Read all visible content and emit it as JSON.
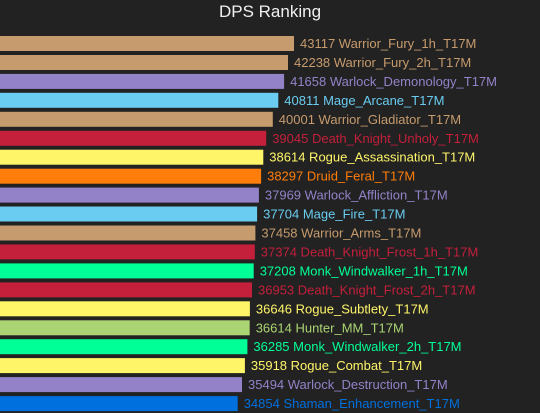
{
  "chart_data": {
    "type": "bar",
    "orientation": "horizontal",
    "title": "DPS Ranking",
    "xlim": [
      0,
      43117
    ],
    "grid": false,
    "legend": "none",
    "bars": [
      {
        "name": "Warrior_Fury_1h_T17M",
        "value": 43117,
        "color": "#c69b6d"
      },
      {
        "name": "Warrior_Fury_2h_T17M",
        "value": 42238,
        "color": "#c69b6d"
      },
      {
        "name": "Warlock_Demonology_T17M",
        "value": 41658,
        "color": "#9482c9"
      },
      {
        "name": "Mage_Arcane_T17M",
        "value": 40811,
        "color": "#69ccf0"
      },
      {
        "name": "Warrior_Gladiator_T17M",
        "value": 40001,
        "color": "#c69b6d"
      },
      {
        "name": "Death_Knight_Unholy_T17M",
        "value": 39045,
        "color": "#c41f3b"
      },
      {
        "name": "Rogue_Assassination_T17M",
        "value": 38614,
        "color": "#fff569"
      },
      {
        "name": "Druid_Feral_T17M",
        "value": 38297,
        "color": "#ff7d0a"
      },
      {
        "name": "Warlock_Affliction_T17M",
        "value": 37969,
        "color": "#9482c9"
      },
      {
        "name": "Mage_Fire_T17M",
        "value": 37704,
        "color": "#69ccf0"
      },
      {
        "name": "Warrior_Arms_T17M",
        "value": 37458,
        "color": "#c69b6d"
      },
      {
        "name": "Death_Knight_Frost_1h_T17M",
        "value": 37374,
        "color": "#c41f3b"
      },
      {
        "name": "Monk_Windwalker_1h_T17M",
        "value": 37208,
        "color": "#00ff96"
      },
      {
        "name": "Death_Knight_Frost_2h_T17M",
        "value": 36953,
        "color": "#c41f3b"
      },
      {
        "name": "Rogue_Subtlety_T17M",
        "value": 36646,
        "color": "#fff569"
      },
      {
        "name": "Hunter_MM_T17M",
        "value": 36614,
        "color": "#abd473"
      },
      {
        "name": "Monk_Windwalker_2h_T17M",
        "value": 36285,
        "color": "#00ff96"
      },
      {
        "name": "Rogue_Combat_T17M",
        "value": 35918,
        "color": "#fff569"
      },
      {
        "name": "Warlock_Destruction_T17M",
        "value": 35494,
        "color": "#9482c9"
      },
      {
        "name": "Shaman_Enhancement_T17M",
        "value": 34854,
        "color": "#0070de"
      }
    ]
  }
}
